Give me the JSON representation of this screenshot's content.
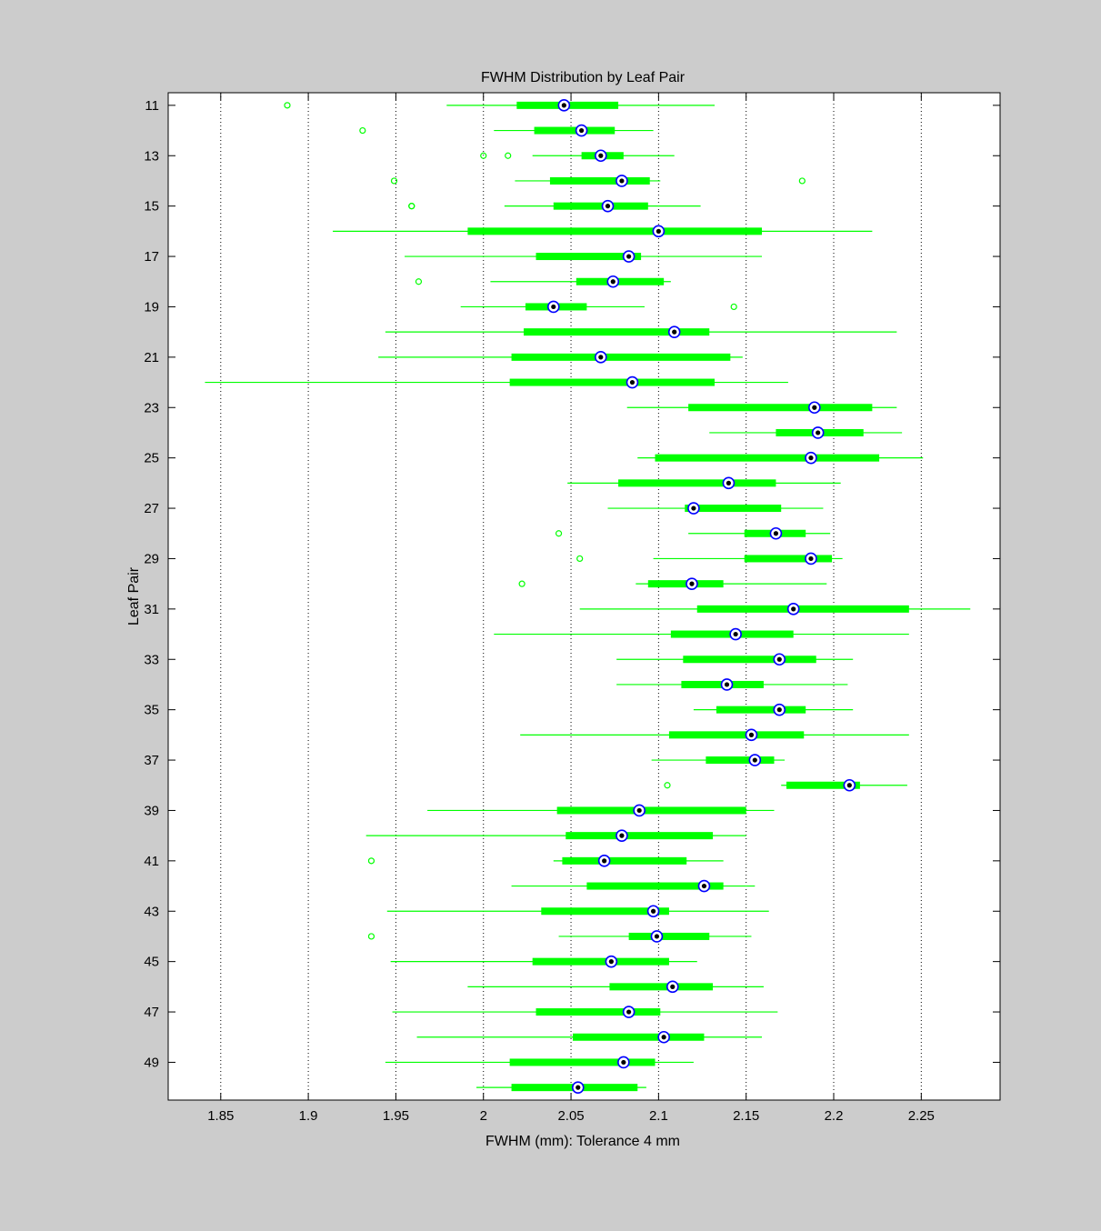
{
  "chart_data": {
    "type": "boxplot",
    "orientation": "horizontal",
    "title": "FWHM Distribution by Leaf Pair",
    "xlabel": "FWHM (mm): Tolerance 4 mm",
    "ylabel": "Leaf Pair",
    "xlim": [
      1.82,
      2.295
    ],
    "xticks": [
      1.85,
      1.9,
      1.95,
      2,
      2.05,
      2.1,
      2.15,
      2.2,
      2.25
    ],
    "xtick_labels": [
      "1.85",
      "1.9",
      "1.95",
      "2",
      "2.05",
      "2.1",
      "2.15",
      "2.2",
      "2.25"
    ],
    "ylim": [
      10.5,
      50.5
    ],
    "ytick_labels": [
      "11",
      "13",
      "15",
      "17",
      "19",
      "21",
      "23",
      "25",
      "27",
      "29",
      "31",
      "33",
      "35",
      "37",
      "39",
      "41",
      "43",
      "45",
      "47",
      "49"
    ],
    "grid": "x-dotted",
    "colors": {
      "box": "#00ff00",
      "median_ring": "#0000ff",
      "median_dot": "#000000",
      "figure_bg": "#cccccc",
      "axes_bg": "#ffffff"
    },
    "series": [
      {
        "leaf": 11,
        "whisker_low": 1.979,
        "q1": 2.019,
        "median": 2.046,
        "q3": 2.077,
        "whisker_high": 2.132,
        "outliers": [
          1.888
        ]
      },
      {
        "leaf": 12,
        "whisker_low": 2.006,
        "q1": 2.029,
        "median": 2.056,
        "q3": 2.075,
        "whisker_high": 2.097,
        "outliers": [
          1.931
        ]
      },
      {
        "leaf": 13,
        "whisker_low": 2.028,
        "q1": 2.056,
        "median": 2.067,
        "q3": 2.08,
        "whisker_high": 2.109,
        "outliers": [
          2.0,
          2.014
        ]
      },
      {
        "leaf": 14,
        "whisker_low": 2.018,
        "q1": 2.038,
        "median": 2.079,
        "q3": 2.095,
        "whisker_high": 2.101,
        "outliers": [
          1.949,
          2.182
        ]
      },
      {
        "leaf": 15,
        "whisker_low": 2.012,
        "q1": 2.04,
        "median": 2.071,
        "q3": 2.094,
        "whisker_high": 2.124,
        "outliers": [
          1.959,
          1.959
        ]
      },
      {
        "leaf": 16,
        "whisker_low": 1.914,
        "q1": 1.991,
        "median": 2.1,
        "q3": 2.159,
        "whisker_high": 2.222,
        "outliers": []
      },
      {
        "leaf": 17,
        "whisker_low": 1.955,
        "q1": 2.03,
        "median": 2.083,
        "q3": 2.09,
        "whisker_high": 2.159,
        "outliers": []
      },
      {
        "leaf": 18,
        "whisker_low": 2.004,
        "q1": 2.053,
        "median": 2.074,
        "q3": 2.103,
        "whisker_high": 2.107,
        "outliers": [
          1.963
        ]
      },
      {
        "leaf": 19,
        "whisker_low": 1.987,
        "q1": 2.024,
        "median": 2.04,
        "q3": 2.059,
        "whisker_high": 2.092,
        "outliers": [
          2.143
        ]
      },
      {
        "leaf": 20,
        "whisker_low": 1.944,
        "q1": 2.023,
        "median": 2.109,
        "q3": 2.129,
        "whisker_high": 2.236,
        "outliers": []
      },
      {
        "leaf": 21,
        "whisker_low": 1.94,
        "q1": 2.016,
        "median": 2.067,
        "q3": 2.141,
        "whisker_high": 2.148,
        "outliers": []
      },
      {
        "leaf": 22,
        "whisker_low": 1.841,
        "q1": 2.015,
        "median": 2.085,
        "q3": 2.132,
        "whisker_high": 2.174,
        "outliers": []
      },
      {
        "leaf": 23,
        "whisker_low": 2.082,
        "q1": 2.117,
        "median": 2.189,
        "q3": 2.222,
        "whisker_high": 2.236,
        "outliers": []
      },
      {
        "leaf": 24,
        "whisker_low": 2.129,
        "q1": 2.167,
        "median": 2.191,
        "q3": 2.217,
        "whisker_high": 2.239,
        "outliers": []
      },
      {
        "leaf": 25,
        "whisker_low": 2.088,
        "q1": 2.098,
        "median": 2.187,
        "q3": 2.226,
        "whisker_high": 2.251,
        "outliers": []
      },
      {
        "leaf": 26,
        "whisker_low": 2.048,
        "q1": 2.077,
        "median": 2.14,
        "q3": 2.167,
        "whisker_high": 2.204,
        "outliers": []
      },
      {
        "leaf": 27,
        "whisker_low": 2.071,
        "q1": 2.115,
        "median": 2.12,
        "q3": 2.17,
        "whisker_high": 2.194,
        "outliers": []
      },
      {
        "leaf": 28,
        "whisker_low": 2.117,
        "q1": 2.149,
        "median": 2.167,
        "q3": 2.184,
        "whisker_high": 2.198,
        "outliers": [
          2.043
        ]
      },
      {
        "leaf": 29,
        "whisker_low": 2.097,
        "q1": 2.149,
        "median": 2.187,
        "q3": 2.199,
        "whisker_high": 2.205,
        "outliers": [
          2.055
        ]
      },
      {
        "leaf": 30,
        "whisker_low": 2.087,
        "q1": 2.094,
        "median": 2.119,
        "q3": 2.137,
        "whisker_high": 2.196,
        "outliers": [
          2.022
        ]
      },
      {
        "leaf": 31,
        "whisker_low": 2.055,
        "q1": 2.122,
        "median": 2.177,
        "q3": 2.243,
        "whisker_high": 2.278,
        "outliers": []
      },
      {
        "leaf": 32,
        "whisker_low": 2.006,
        "q1": 2.107,
        "median": 2.144,
        "q3": 2.177,
        "whisker_high": 2.243,
        "outliers": []
      },
      {
        "leaf": 33,
        "whisker_low": 2.076,
        "q1": 2.114,
        "median": 2.169,
        "q3": 2.19,
        "whisker_high": 2.211,
        "outliers": []
      },
      {
        "leaf": 34,
        "whisker_low": 2.076,
        "q1": 2.113,
        "median": 2.139,
        "q3": 2.16,
        "whisker_high": 2.208,
        "outliers": []
      },
      {
        "leaf": 35,
        "whisker_low": 2.12,
        "q1": 2.133,
        "median": 2.169,
        "q3": 2.184,
        "whisker_high": 2.211,
        "outliers": []
      },
      {
        "leaf": 36,
        "whisker_low": 2.021,
        "q1": 2.106,
        "median": 2.153,
        "q3": 2.183,
        "whisker_high": 2.243,
        "outliers": []
      },
      {
        "leaf": 37,
        "whisker_low": 2.096,
        "q1": 2.127,
        "median": 2.155,
        "q3": 2.166,
        "whisker_high": 2.172,
        "outliers": []
      },
      {
        "leaf": 38,
        "whisker_low": 2.17,
        "q1": 2.173,
        "median": 2.209,
        "q3": 2.215,
        "whisker_high": 2.242,
        "outliers": [
          2.105
        ]
      },
      {
        "leaf": 39,
        "whisker_low": 1.968,
        "q1": 2.042,
        "median": 2.089,
        "q3": 2.15,
        "whisker_high": 2.166,
        "outliers": []
      },
      {
        "leaf": 40,
        "whisker_low": 1.933,
        "q1": 2.047,
        "median": 2.079,
        "q3": 2.131,
        "whisker_high": 2.15,
        "outliers": []
      },
      {
        "leaf": 41,
        "whisker_low": 2.04,
        "q1": 2.045,
        "median": 2.069,
        "q3": 2.116,
        "whisker_high": 2.137,
        "outliers": [
          1.936
        ]
      },
      {
        "leaf": 42,
        "whisker_low": 2.016,
        "q1": 2.059,
        "median": 2.126,
        "q3": 2.137,
        "whisker_high": 2.155,
        "outliers": []
      },
      {
        "leaf": 43,
        "whisker_low": 1.945,
        "q1": 2.033,
        "median": 2.097,
        "q3": 2.106,
        "whisker_high": 2.163,
        "outliers": []
      },
      {
        "leaf": 44,
        "whisker_low": 2.043,
        "q1": 2.083,
        "median": 2.099,
        "q3": 2.129,
        "whisker_high": 2.153,
        "outliers": [
          1.936
        ]
      },
      {
        "leaf": 45,
        "whisker_low": 1.947,
        "q1": 2.028,
        "median": 2.073,
        "q3": 2.106,
        "whisker_high": 2.122,
        "outliers": []
      },
      {
        "leaf": 46,
        "whisker_low": 1.991,
        "q1": 2.072,
        "median": 2.108,
        "q3": 2.131,
        "whisker_high": 2.16,
        "outliers": []
      },
      {
        "leaf": 47,
        "whisker_low": 1.948,
        "q1": 2.03,
        "median": 2.083,
        "q3": 2.101,
        "whisker_high": 2.168,
        "outliers": []
      },
      {
        "leaf": 48,
        "whisker_low": 1.962,
        "q1": 2.051,
        "median": 2.103,
        "q3": 2.126,
        "whisker_high": 2.159,
        "outliers": []
      },
      {
        "leaf": 49,
        "whisker_low": 1.944,
        "q1": 2.015,
        "median": 2.08,
        "q3": 2.098,
        "whisker_high": 2.12,
        "outliers": []
      },
      {
        "leaf": 50,
        "whisker_low": 1.996,
        "q1": 2.016,
        "median": 2.054,
        "q3": 2.088,
        "whisker_high": 2.093,
        "outliers": []
      }
    ]
  }
}
